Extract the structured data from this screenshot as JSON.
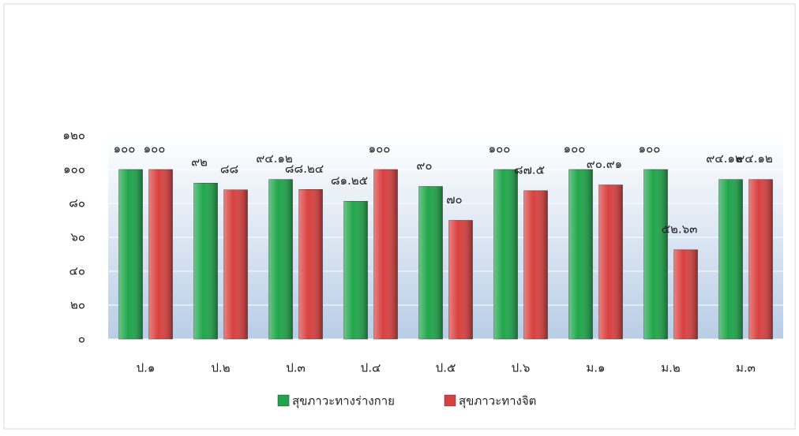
{
  "chart_data": {
    "type": "bar",
    "categories": [
      "ป.๑",
      "ป.๒",
      "ป.๓",
      "ป.๔",
      "ป.๕",
      "ป.๖",
      "ม.๑",
      "ม.๒",
      "ม.๓"
    ],
    "series": [
      {
        "name": "สุขภาวะทางร่างกาย",
        "color": "#1fa64a",
        "values": [
          100,
          92,
          94.12,
          81.25,
          90,
          100,
          100,
          100,
          94.12
        ],
        "value_labels": [
          "๑๐๐",
          "๙๒",
          "๙๔.๑๒",
          "๘๑.๒๕",
          "๙๐",
          "๑๐๐",
          "๑๐๐",
          "๑๐๐",
          "๙๔.๑๒"
        ]
      },
      {
        "name": "สุขภาวะทางจิต",
        "color": "#d9403f",
        "values": [
          100,
          88,
          88.24,
          100,
          70,
          87.5,
          90.91,
          52.63,
          94.12
        ],
        "value_labels": [
          "๑๐๐",
          "๘๘",
          "๘๘.๒๔",
          "๑๐๐",
          "๗๐",
          "๘๗.๕",
          "๙๐.๙๑",
          "๕๒.๖๓",
          "๙๔.๑๒"
        ]
      }
    ],
    "ylim": [
      0,
      120
    ],
    "yticks": [
      {
        "value": 0,
        "label": "๐"
      },
      {
        "value": 20,
        "label": "๒๐"
      },
      {
        "value": 40,
        "label": "๔๐"
      },
      {
        "value": 60,
        "label": "๖๐"
      },
      {
        "value": 80,
        "label": "๘๐"
      },
      {
        "value": 100,
        "label": "๑๐๐"
      },
      {
        "value": 120,
        "label": "๑๒๐"
      }
    ],
    "grid": true,
    "legend": "bottom"
  }
}
